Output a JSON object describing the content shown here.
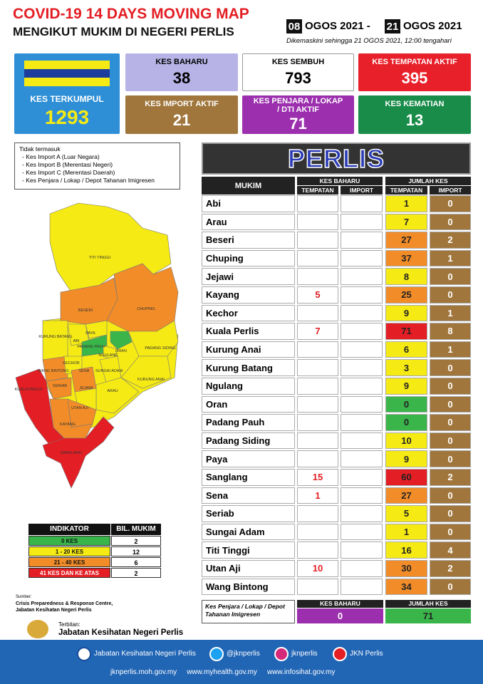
{
  "header": {
    "title": "COVID-19 14 DAYS MOVING MAP",
    "subtitle": "MENGIKUT MUKIM DI NEGERI PERLIS",
    "date_from_day": "08",
    "date_from_rest": "OGOS 2021 -",
    "date_to_day": "21",
    "date_to_rest": "OGOS 2021",
    "updated": "Dikemaskini sehingga 21 OGOS 2021, 12:00 tengahari"
  },
  "stats": {
    "terkumpul": {
      "label": "KES TERKUMPUL",
      "value": 1293
    },
    "baharu": {
      "label": "KES BAHARU",
      "value": 38
    },
    "sembuh": {
      "label": "KES SEMBUH",
      "value": 793
    },
    "tempatan_aktif": {
      "label": "KES TEMPATAN AKTIF",
      "value": 395
    },
    "import_aktif": {
      "label": "KES IMPORT AKTIF",
      "value": 21
    },
    "penjara": {
      "label": "KES PENJARA / LOKAP / DTI AKTIF",
      "value": 71
    },
    "kematian": {
      "label": "KES KEMATIAN",
      "value": 13
    }
  },
  "notes": {
    "title": "Tidak termasuk",
    "items": [
      "- Kes Import A (Luar Negara)",
      "- Kes Import B (Merentasi Negeri)",
      "- Kes Import C (Merentasi Daerah)",
      "- Kes Penjara / Lokap / Depot Tahanan Imigresen"
    ]
  },
  "map_labels": [
    "TITI TINGGI",
    "BESERI",
    "CHUPING",
    "KURUNG BATANG",
    "PAYA",
    "ABI",
    "PADANG PAUH",
    "NGULANG",
    "ORAN",
    "PADANG SIDING",
    "WANG BINTONG",
    "KECHOR",
    "SENA",
    "SUNGAI ADAM",
    "KURUNG ANAI",
    "SERIAB",
    "JEJAWI",
    "ARAU",
    "KUALA PERLIS",
    "UTAN AJI",
    "KAYANG",
    "SANGLANG"
  ],
  "table": {
    "title": "PERLIS",
    "headers": {
      "mukim": "MUKIM",
      "baharu": "KES BAHARU",
      "jumlah": "JUMLAH KES",
      "baharu_tempatan": "TEMPATAN",
      "baharu_import": "IMPORT",
      "jumlah_tempatan": "TEMPATAN",
      "jumlah_import": "IMPORT"
    },
    "rows": [
      {
        "mukim": "Abi",
        "baharu_tempatan": null,
        "baharu_import": null,
        "tempatan": 1,
        "import": 0,
        "color": "#f5ea14"
      },
      {
        "mukim": "Arau",
        "baharu_tempatan": null,
        "baharu_import": null,
        "tempatan": 7,
        "import": 0,
        "color": "#f5ea14"
      },
      {
        "mukim": "Beseri",
        "baharu_tempatan": null,
        "baharu_import": null,
        "tempatan": 27,
        "import": 2,
        "color": "#f28c28"
      },
      {
        "mukim": "Chuping",
        "baharu_tempatan": null,
        "baharu_import": null,
        "tempatan": 37,
        "import": 1,
        "color": "#f28c28"
      },
      {
        "mukim": "Jejawi",
        "baharu_tempatan": null,
        "baharu_import": null,
        "tempatan": 8,
        "import": 0,
        "color": "#f5ea14"
      },
      {
        "mukim": "Kayang",
        "baharu_tempatan": 5,
        "baharu_import": null,
        "tempatan": 25,
        "import": 0,
        "color": "#f28c28"
      },
      {
        "mukim": "Kechor",
        "baharu_tempatan": null,
        "baharu_import": null,
        "tempatan": 9,
        "import": 1,
        "color": "#f5ea14"
      },
      {
        "mukim": "Kuala Perlis",
        "baharu_tempatan": 7,
        "baharu_import": null,
        "tempatan": 71,
        "import": 8,
        "color": "#e31e24"
      },
      {
        "mukim": "Kurung Anai",
        "baharu_tempatan": null,
        "baharu_import": null,
        "tempatan": 6,
        "import": 1,
        "color": "#f5ea14"
      },
      {
        "mukim": "Kurung Batang",
        "baharu_tempatan": null,
        "baharu_import": null,
        "tempatan": 3,
        "import": 0,
        "color": "#f5ea14"
      },
      {
        "mukim": "Ngulang",
        "baharu_tempatan": null,
        "baharu_import": null,
        "tempatan": 9,
        "import": 0,
        "color": "#f5ea14"
      },
      {
        "mukim": "Oran",
        "baharu_tempatan": null,
        "baharu_import": null,
        "tempatan": 0,
        "import": 0,
        "color": "#39b54a"
      },
      {
        "mukim": "Padang Pauh",
        "baharu_tempatan": null,
        "baharu_import": null,
        "tempatan": 0,
        "import": 0,
        "color": "#39b54a"
      },
      {
        "mukim": "Padang Siding",
        "baharu_tempatan": null,
        "baharu_import": null,
        "tempatan": 10,
        "import": 0,
        "color": "#f5ea14"
      },
      {
        "mukim": "Paya",
        "baharu_tempatan": null,
        "baharu_import": null,
        "tempatan": 9,
        "import": 0,
        "color": "#f5ea14"
      },
      {
        "mukim": "Sanglang",
        "baharu_tempatan": 15,
        "baharu_import": null,
        "tempatan": 60,
        "import": 2,
        "color": "#e31e24"
      },
      {
        "mukim": "Sena",
        "baharu_tempatan": 1,
        "baharu_import": null,
        "tempatan": 27,
        "import": 0,
        "color": "#f28c28"
      },
      {
        "mukim": "Seriab",
        "baharu_tempatan": null,
        "baharu_import": null,
        "tempatan": 5,
        "import": 0,
        "color": "#f5ea14"
      },
      {
        "mukim": "Sungai Adam",
        "baharu_tempatan": null,
        "baharu_import": null,
        "tempatan": 1,
        "import": 0,
        "color": "#f5ea14"
      },
      {
        "mukim": "Titi Tinggi",
        "baharu_tempatan": null,
        "baharu_import": null,
        "tempatan": 16,
        "import": 4,
        "color": "#f5ea14"
      },
      {
        "mukim": "Utan Aji",
        "baharu_tempatan": 10,
        "baharu_import": null,
        "tempatan": 30,
        "import": 2,
        "color": "#f28c28"
      },
      {
        "mukim": "Wang Bintong",
        "baharu_tempatan": null,
        "baharu_import": null,
        "tempatan": 34,
        "import": 0,
        "color": "#f28c28"
      }
    ],
    "penjara": {
      "label": "Kes Penjara / Lokap / Depot Tahanan Imigresen",
      "baharu_header": "KES BAHARU",
      "baharu": 0,
      "jumlah_header": "JUMLAH KES",
      "jumlah": 71
    }
  },
  "indicator": {
    "headers": [
      "INDIKATOR",
      "BIL. MUKIM"
    ],
    "rows": [
      {
        "label": "0 KES",
        "count": 2,
        "color": "#39b54a"
      },
      {
        "label": "1 - 20 KES",
        "count": 12,
        "color": "#f5ea14"
      },
      {
        "label": "21 - 40 KES",
        "count": 6,
        "color": "#f28c28"
      },
      {
        "label": "41 KES DAN KE ATAS",
        "count": 2,
        "color": "#e31e24"
      }
    ]
  },
  "source": {
    "label": "Sumber:",
    "lines": [
      "Crisis Preparedness & Response Centre,",
      "Jabatan Kesihatan Negeri Perlis"
    ]
  },
  "publisher": {
    "label": "Terbitan:",
    "name": "Jabatan Kesihatan Negeri Perlis"
  },
  "footer": {
    "facebook": "Jabatan Kesihatan Negeri Perlis",
    "twitter": "@jknperlis",
    "instagram": "jknperlis",
    "youtube": "JKN Perlis",
    "links": [
      "jknperlis.moh.gov.my",
      "www.myhealth.gov.my",
      "www.infosihat.gov.my"
    ]
  }
}
